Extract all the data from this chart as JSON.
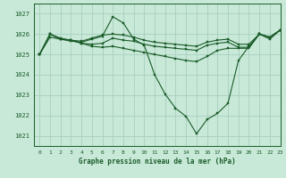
{
  "title": "Graphe pression niveau de la mer (hPa)",
  "bg_color": "#c8e8d8",
  "grid_color": "#a8cfc0",
  "line_color": "#1a5c28",
  "xlim": [
    -0.5,
    23
  ],
  "ylim": [
    1020.5,
    1027.5
  ],
  "yticks": [
    1021,
    1022,
    1023,
    1024,
    1025,
    1026,
    1027
  ],
  "xticks": [
    0,
    1,
    2,
    3,
    4,
    5,
    6,
    7,
    8,
    9,
    10,
    11,
    12,
    13,
    14,
    15,
    16,
    17,
    18,
    19,
    20,
    21,
    22,
    23
  ],
  "series": [
    [
      1025.0,
      1025.85,
      1025.75,
      1025.65,
      1025.6,
      1025.75,
      1025.9,
      1026.85,
      1026.55,
      1025.75,
      1025.45,
      1024.0,
      1023.05,
      1022.35,
      1021.95,
      1021.1,
      1021.8,
      1022.1,
      1022.6,
      1024.7,
      1025.4,
      1026.0,
      1025.85,
      1026.2
    ],
    [
      1025.0,
      1026.0,
      1025.8,
      1025.7,
      1025.65,
      1025.8,
      1025.95,
      1026.0,
      1025.95,
      1025.85,
      1025.7,
      1025.6,
      1025.55,
      1025.5,
      1025.45,
      1025.4,
      1025.6,
      1025.7,
      1025.75,
      1025.5,
      1025.5,
      1026.0,
      1025.85,
      1026.2
    ],
    [
      1025.0,
      1026.0,
      1025.75,
      1025.7,
      1025.55,
      1025.5,
      1025.55,
      1025.8,
      1025.7,
      1025.65,
      1025.5,
      1025.4,
      1025.35,
      1025.3,
      1025.25,
      1025.2,
      1025.45,
      1025.55,
      1025.6,
      1025.35,
      1025.35,
      1026.0,
      1025.85,
      1026.2
    ],
    [
      1025.0,
      1026.0,
      1025.75,
      1025.7,
      1025.55,
      1025.4,
      1025.35,
      1025.4,
      1025.3,
      1025.2,
      1025.1,
      1025.0,
      1024.9,
      1024.8,
      1024.7,
      1024.65,
      1024.9,
      1025.2,
      1025.3,
      1025.3,
      1025.3,
      1026.0,
      1025.75,
      1026.2
    ]
  ]
}
